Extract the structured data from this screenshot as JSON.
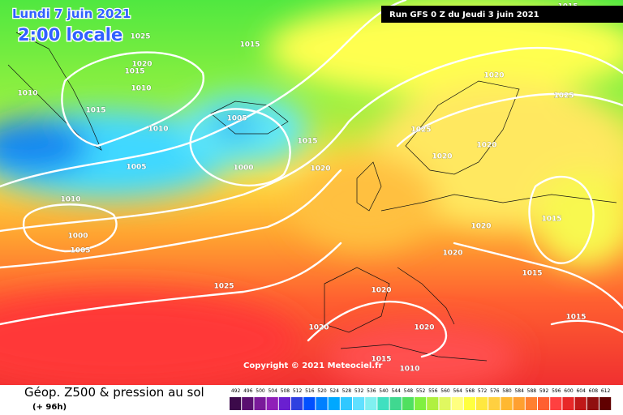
{
  "header": {
    "date": "Lundi 7 juin 2021",
    "time": "2:00 locale",
    "run": "Run GFS 0 Z du Jeudi 3 juin 2021"
  },
  "map": {
    "isobar_labels": [
      "1025",
      "1020",
      "1015",
      "1010",
      "1010",
      "1015",
      "1010",
      "1005",
      "1005",
      "1000",
      "1015",
      "1020",
      "1010",
      "1000",
      "1005",
      "1025",
      "1020",
      "1020",
      "1020",
      "1015",
      "1010",
      "1020",
      "1025",
      "1025",
      "1020",
      "1020",
      "1015",
      "1020",
      "1020",
      "1015",
      "1015",
      "1015",
      "1015"
    ]
  },
  "footer": {
    "copyright": "Copyright © 2021 Meteociel.fr",
    "product": "Géop. Z500 & pression au sol",
    "lead_time": "(+ 96h)"
  },
  "colorbar": {
    "labels": [
      492,
      496,
      500,
      504,
      508,
      512,
      516,
      520,
      524,
      528,
      532,
      536,
      540,
      544,
      548,
      552,
      556,
      560,
      564,
      568,
      572,
      576,
      580,
      584,
      588,
      592,
      596,
      600,
      604,
      608,
      612
    ],
    "colors": [
      "#3c0a4a",
      "#5a1070",
      "#7a1a9a",
      "#9020b8",
      "#6a1fd0",
      "#3040e0",
      "#0050ff",
      "#0080ff",
      "#00a8ff",
      "#30c8ff",
      "#60e0ff",
      "#80f0f0",
      "#40e0c0",
      "#40d890",
      "#50e060",
      "#80f040",
      "#b0f040",
      "#e0f860",
      "#ffff80",
      "#ffff40",
      "#ffe840",
      "#ffd040",
      "#ffb830",
      "#ffa030",
      "#ff8030",
      "#ff6030",
      "#ff4040",
      "#e82828",
      "#c01818",
      "#901010",
      "#600000"
    ]
  }
}
